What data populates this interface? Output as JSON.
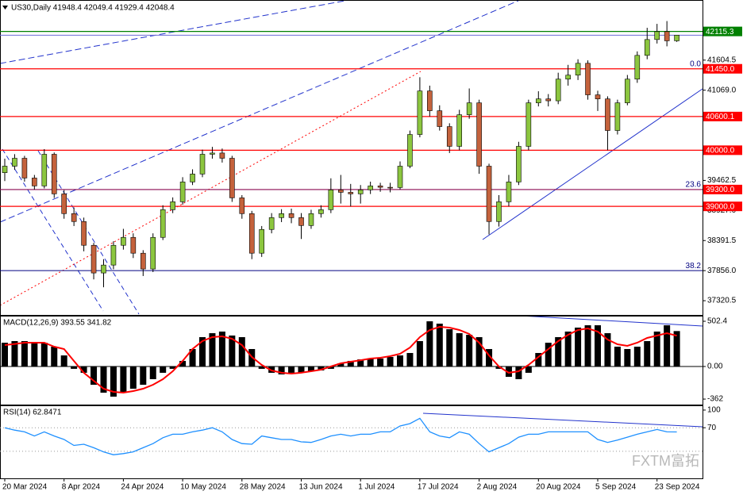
{
  "chart_data": [
    {
      "type": "candlestick",
      "title": "US30,Daily  41948.4 42049.4 41929.4 42048.4",
      "categories": [
        "20 Mar 2024",
        null,
        null,
        null,
        null,
        null,
        "8 Apr 2024",
        null,
        null,
        null,
        null,
        null,
        "24 Apr 2024",
        null,
        null,
        null,
        null,
        null,
        "10 May 2024",
        null,
        null,
        null,
        null,
        null,
        "28 May 2024",
        null,
        null,
        null,
        null,
        null,
        "13 Jun 2024",
        null,
        null,
        null,
        null,
        null,
        "1 Jul 2024",
        null,
        null,
        null,
        null,
        null,
        "17 Jul 2024",
        null,
        null,
        null,
        null,
        null,
        "2 Aug 2024",
        null,
        null,
        null,
        null,
        null,
        "20 Aug 2024",
        null,
        null,
        null,
        null,
        null,
        "5 Sep 2024",
        null,
        null,
        null,
        null,
        null,
        "23 Sep 2024",
        null,
        null
      ],
      "open": [
        39600,
        39716,
        39857,
        39505,
        39364,
        39928,
        39223,
        38871,
        38730,
        38307,
        37814,
        37955,
        38307,
        38448,
        38166,
        37885,
        38448,
        38941,
        39082,
        39435,
        39576,
        39928,
        39950,
        39857,
        39152,
        38871,
        38166,
        38589,
        38800,
        38871,
        38800,
        38659,
        38871,
        38941,
        39294,
        39250,
        39223,
        39294,
        39364,
        39340,
        39336,
        39716,
        40280,
        41055,
        40703,
        40421,
        40069,
        40632,
        40844,
        39716,
        38730,
        39082,
        39435,
        40069,
        40844,
        40914,
        40880,
        41266,
        41337,
        41548,
        40986,
        40914,
        40351,
        40844,
        41266,
        41689,
        41971,
        42112,
        41948.4
      ],
      "high": [
        39850,
        39930,
        39900,
        39560,
        40020,
        39960,
        39290,
        38980,
        38800,
        38350,
        38060,
        38380,
        38600,
        38520,
        38220,
        38520,
        39020,
        39160,
        39520,
        39660,
        40010,
        40060,
        40030,
        39900,
        39200,
        38920,
        38650,
        38880,
        38950,
        38960,
        38880,
        38940,
        39020,
        39500,
        39560,
        39400,
        39380,
        39440,
        39420,
        39420,
        39800,
        40350,
        41300,
        41150,
        40800,
        40480,
        40720,
        41100,
        40900,
        39760,
        39200,
        39560,
        40150,
        40900,
        41050,
        41000,
        41380,
        41520,
        41620,
        41600,
        41060,
        40960,
        40900,
        41340,
        41760,
        42180,
        42250,
        42300,
        42049.4
      ],
      "low": [
        39450,
        39650,
        39440,
        39300,
        39320,
        39150,
        38780,
        38650,
        38200,
        37700,
        37560,
        37880,
        38230,
        38080,
        37760,
        37830,
        38400,
        38880,
        39030,
        39380,
        39520,
        39850,
        39780,
        39080,
        38780,
        38060,
        38100,
        38520,
        38720,
        38700,
        38420,
        38600,
        38800,
        38880,
        39050,
        39000,
        39050,
        39220,
        39260,
        39250,
        39300,
        39680,
        40230,
        40600,
        40350,
        39950,
        40000,
        40560,
        39580,
        38500,
        38640,
        39000,
        39380,
        40000,
        40780,
        40780,
        40820,
        41150,
        41250,
        40900,
        40700,
        40000,
        40280,
        40800,
        41200,
        41620,
        41900,
        41850,
        41929.4
      ],
      "close": [
        39716,
        39857,
        39505,
        39364,
        39928,
        39223,
        38871,
        38730,
        38307,
        37814,
        37955,
        38307,
        38448,
        38166,
        37885,
        38448,
        38941,
        39082,
        39435,
        39576,
        39928,
        39950,
        39857,
        39152,
        38871,
        38166,
        38589,
        38800,
        38871,
        38800,
        38659,
        38871,
        38941,
        39294,
        39250,
        39223,
        39294,
        39364,
        39340,
        39336,
        39716,
        40280,
        41055,
        40703,
        40421,
        40069,
        40632,
        40844,
        39716,
        38730,
        39082,
        39435,
        40069,
        40844,
        40914,
        40880,
        41266,
        41337,
        41548,
        40986,
        40914,
        40351,
        40844,
        41266,
        41689,
        41971,
        42112,
        41948.4,
        42048.4
      ],
      "up_color": "#8cc63f",
      "down_color": "#c4623c",
      "wick_color": "#000000",
      "ylim": [
        37067,
        42675
      ],
      "yticks": [
        41604.5,
        {
          "value": 41069,
          "label": "41069.0"
        },
        39462.5,
        {
          "value": 38927,
          "label": "38927.0"
        },
        38391.5,
        {
          "value": 37856,
          "label": "37856.0"
        },
        37320.5
      ],
      "levels": [
        {
          "value": 42115.3,
          "color": "#008000"
        },
        {
          "value": 41450,
          "label": "41450.0",
          "color": "#ff0000"
        },
        {
          "value": 40600.1,
          "color": "#ff0000"
        },
        {
          "value": 40000,
          "label": "40000.0",
          "color": "#ff0000"
        },
        {
          "value": 39300,
          "label": "39300.0",
          "color": "#ff0000",
          "line_color": "#8b0a50"
        },
        {
          "value": 39000,
          "label": "39000.0",
          "color": "#ff0000"
        }
      ],
      "fib_labels": [
        {
          "value": 41450,
          "label": "0.0"
        },
        {
          "value": 39300,
          "label": "23.6"
        },
        {
          "value": 37856,
          "label": "38.2"
        }
      ],
      "fib_line_color": "#000080",
      "bid_color": "#6b6bd6"
    },
    {
      "type": "macd",
      "title": "MACD(12,26,9) 393.55 341.82",
      "values": [
        264,
        282,
        282,
        264,
        264,
        220,
        123,
        -26,
        -70,
        -203,
        -291,
        -335,
        -291,
        -247,
        -203,
        -141,
        -70,
        -26,
        62,
        194,
        326,
        370,
        388,
        344,
        326,
        194,
        -26,
        -70,
        -88,
        -70,
        -70,
        -53,
        -44,
        -26,
        35,
        62,
        79,
        88,
        88,
        106,
        123,
        150,
        282,
        502,
        476,
        414,
        370,
        352,
        326,
        194,
        -26,
        -115,
        -141,
        -70,
        150,
        264,
        326,
        388,
        432,
        458,
        458,
        370,
        220,
        194,
        220,
        282,
        388,
        458,
        393.55
      ],
      "signal": [
        238,
        250,
        264,
        264,
        264,
        220,
        194,
        62,
        -70,
        -159,
        -247,
        -282,
        -291,
        -273,
        -247,
        -203,
        -141,
        -53,
        62,
        194,
        282,
        326,
        335,
        308,
        238,
        106,
        18,
        -44,
        -70,
        -79,
        -70,
        -53,
        -35,
        0,
        35,
        53,
        70,
        88,
        97,
        115,
        141,
        211,
        326,
        405,
        441,
        432,
        405,
        361,
        264,
        123,
        0,
        -70,
        -53,
        18,
        106,
        194,
        282,
        352,
        405,
        423,
        388,
        300,
        247,
        229,
        264,
        317,
        344,
        370,
        341.82
      ],
      "color": "#000000",
      "signal_color": "#ff0000",
      "ylim": [
        -423,
        564
      ],
      "yticks": [
        502.4,
        {
          "value": 0,
          "label": "0.00"
        },
        -362
      ]
    },
    {
      "type": "line",
      "title": "RSI(14) 62.8471",
      "values": [
        70,
        66,
        63,
        56,
        63,
        56,
        50,
        40,
        42,
        36,
        29,
        24,
        26,
        29,
        36,
        43,
        53,
        59,
        59,
        63,
        66,
        70,
        63,
        50,
        43,
        42,
        56,
        53,
        50,
        50,
        46,
        45,
        50,
        56,
        59,
        56,
        59,
        59,
        63,
        63,
        73,
        77,
        86,
        63,
        56,
        53,
        63,
        59,
        43,
        29,
        36,
        43,
        54,
        59,
        59,
        63,
        63,
        63,
        63,
        63,
        50,
        45,
        49,
        54,
        59,
        63,
        67,
        63,
        62.8471
      ],
      "color": "#1e90ff",
      "ylim": [
        -16,
        108
      ],
      "yticks": [
        100,
        70
      ],
      "levels": [
        70,
        30
      ]
    }
  ],
  "watermark": "FXTM富拓"
}
